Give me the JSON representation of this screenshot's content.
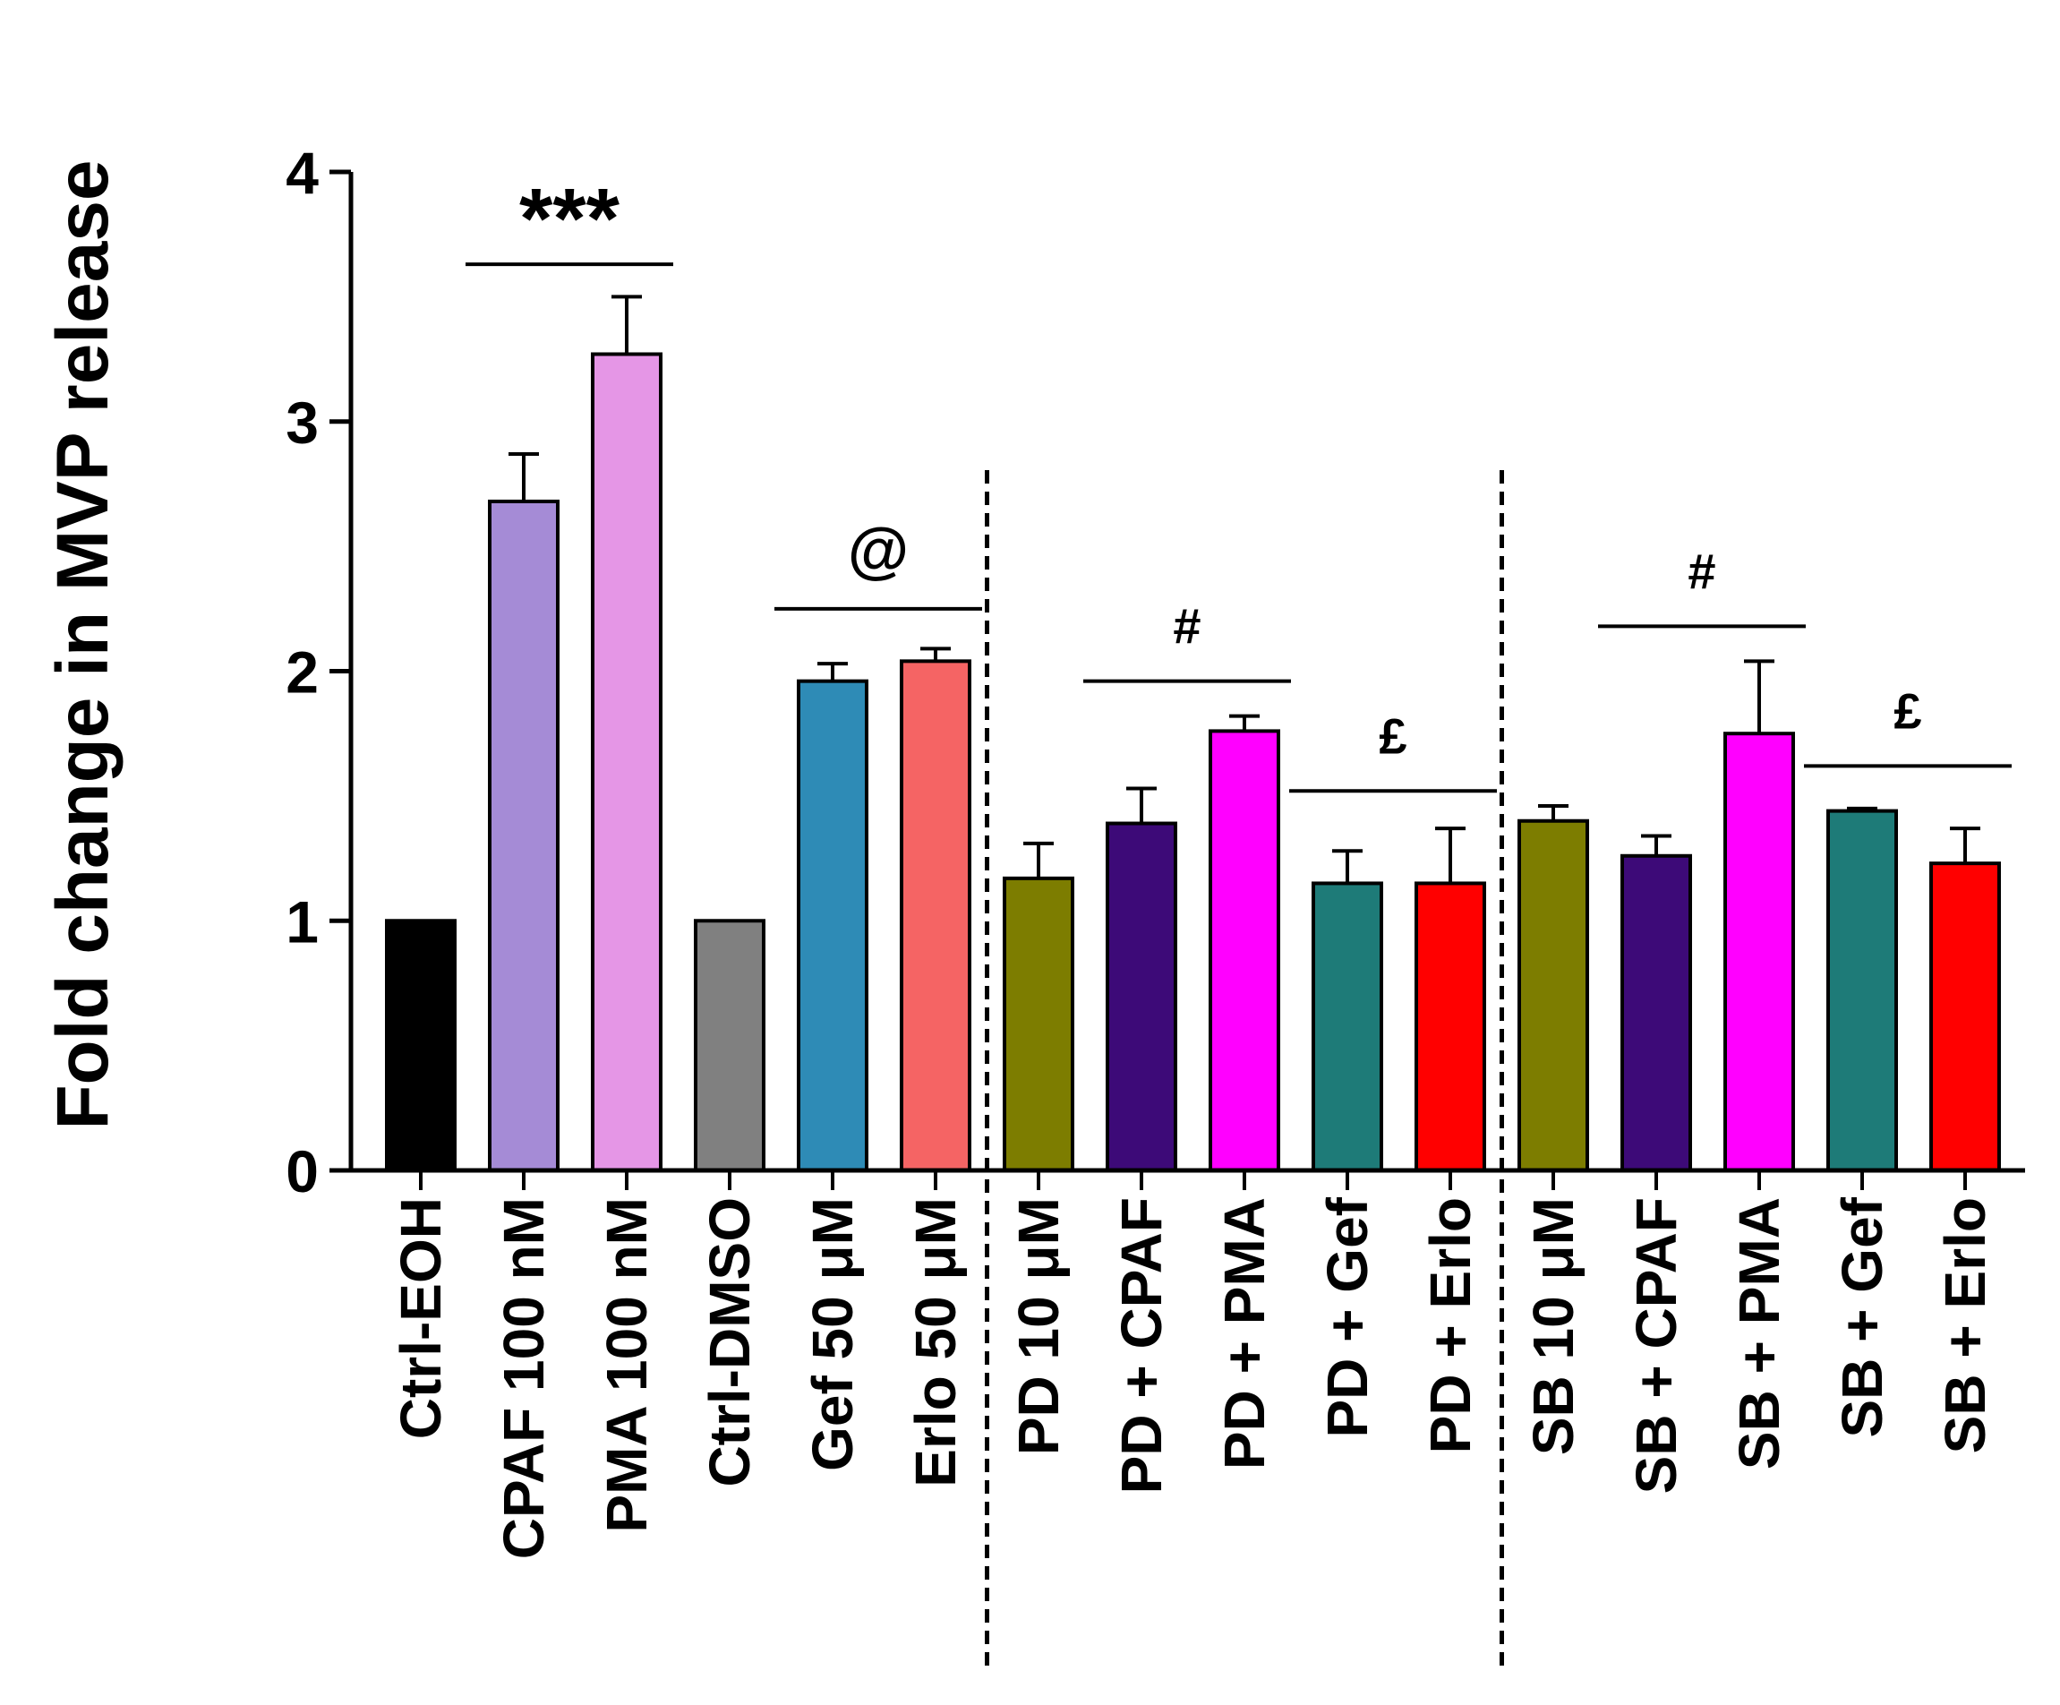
{
  "chart_data": {
    "type": "bar",
    "ylabel": "Fold change in MVP release",
    "xlabel": "",
    "title": "",
    "ylim": [
      0,
      4
    ],
    "yticks": [
      0,
      1,
      2,
      3,
      4
    ],
    "grid": false,
    "legend": "none",
    "categories": [
      "Ctrl-EOH",
      "CPAF 100 nM",
      "PMA 100 nM",
      "Ctrl-DMSO",
      "Gef 50 μM",
      "Erlo 50 μM",
      "PD 10 μM",
      "PD + CPAF",
      "PD + PMA",
      "PD + Gef",
      "PD + Erlo",
      "SB 10 μM",
      "SB + CPAF",
      "SB + PMA",
      "SB + Gef",
      "SB + Erlo"
    ],
    "values": [
      1.0,
      2.68,
      3.27,
      1.0,
      1.96,
      2.04,
      1.17,
      1.39,
      1.76,
      1.15,
      1.15,
      1.4,
      1.26,
      1.75,
      1.44,
      1.23
    ],
    "errors": [
      0,
      0.19,
      0.23,
      0,
      0.07,
      0.05,
      0.14,
      0.14,
      0.06,
      0.13,
      0.22,
      0.06,
      0.08,
      0.29,
      0.01,
      0.14
    ],
    "colors": [
      "#000000",
      "#A58BD6",
      "#E596E6",
      "#808080",
      "#2E8BB6",
      "#F56464",
      "#7D7D00",
      "#3D0A78",
      "#FF00FF",
      "#1E7B78",
      "#FF0000",
      "#7D7D00",
      "#3D0A78",
      "#FF00FF",
      "#1E7B78",
      "#FF0000"
    ],
    "group_separators_after": [
      5,
      10
    ],
    "annotations": [
      {
        "text": "***",
        "from": 1,
        "to": 2,
        "y": 3.63
      },
      {
        "text": "@",
        "from": 4,
        "to": 5,
        "y": 2.25
      },
      {
        "text": "#",
        "from": 7,
        "to": 8,
        "y": 1.96
      },
      {
        "text": "£",
        "from": 9,
        "to": 10,
        "y": 1.52
      },
      {
        "text": "#",
        "from": 12,
        "to": 13,
        "y": 2.18
      },
      {
        "text": "£",
        "from": 14,
        "to": 15,
        "y": 1.62
      }
    ]
  }
}
